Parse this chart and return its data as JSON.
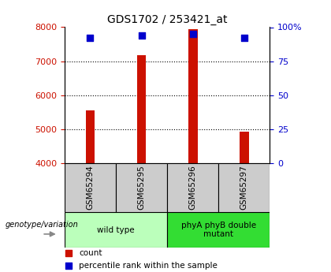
{
  "title": "GDS1702 / 253421_at",
  "samples": [
    "GSM65294",
    "GSM65295",
    "GSM65296",
    "GSM65297"
  ],
  "counts": [
    5550,
    7180,
    7950,
    4920
  ],
  "percentile_ranks": [
    92,
    94,
    95,
    92
  ],
  "ylim_left": [
    4000,
    8000
  ],
  "ylim_right": [
    0,
    100
  ],
  "yticks_left": [
    4000,
    5000,
    6000,
    7000,
    8000
  ],
  "yticks_right": [
    0,
    25,
    50,
    75,
    100
  ],
  "bar_color": "#cc1100",
  "dot_color": "#0000cc",
  "bar_width": 0.18,
  "groups": [
    {
      "label": "wild type",
      "samples": [
        "GSM65294",
        "GSM65295"
      ],
      "color": "#bbffbb"
    },
    {
      "label": "phyA phyB double\nmutant",
      "samples": [
        "GSM65296",
        "GSM65297"
      ],
      "color": "#33dd33"
    }
  ],
  "group_label": "genotype/variation",
  "sample_box_color": "#cccccc"
}
